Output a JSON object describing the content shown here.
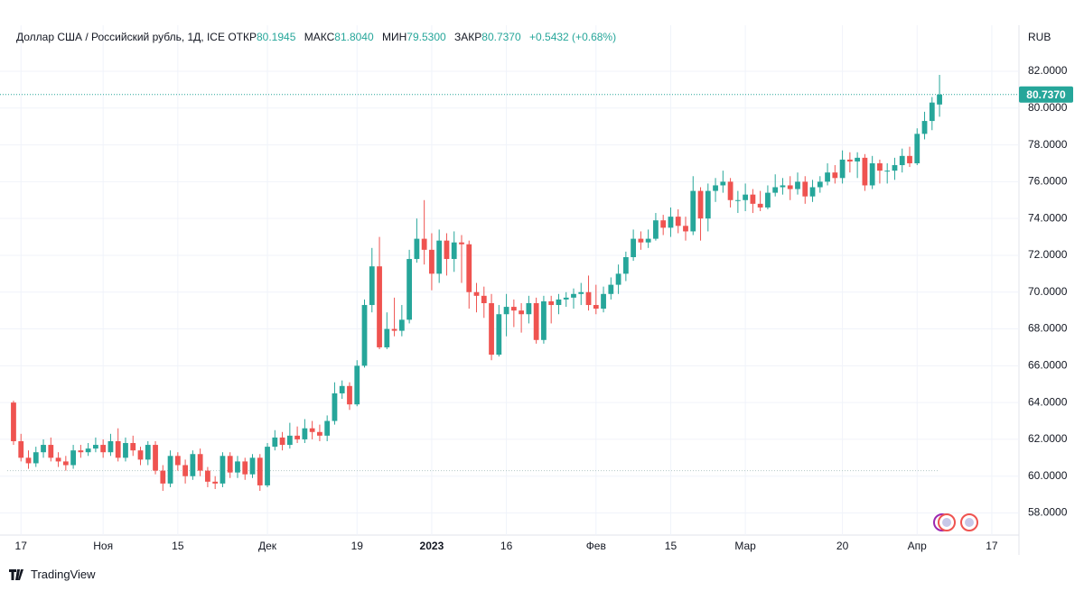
{
  "chart_data": {
    "type": "candlestick",
    "title": "Доллар США / Российский рубль, 1Д, ICE",
    "header": [
      {
        "label": "ОТКР",
        "value": "80.1945"
      },
      {
        "label": "МАКС",
        "value": "81.8040"
      },
      {
        "label": "МИН",
        "value": "79.5300"
      },
      {
        "label": "ЗАКР",
        "value": "80.7370"
      }
    ],
    "change": "+0.5432 (+0.68%)",
    "currency": "RUB",
    "up_color": "#26a69a",
    "down_color": "#ef5350",
    "grid": true,
    "open": [
      64.0,
      61.9,
      61.0,
      60.7,
      61.3,
      61.7,
      61.0,
      60.8,
      60.6,
      61.4,
      61.3,
      61.5,
      61.7,
      61.3,
      61.9,
      61.0,
      61.8,
      61.4,
      60.9,
      61.7,
      60.3,
      59.6,
      61.1,
      60.6,
      60.0,
      61.2,
      60.3,
      59.7,
      59.6,
      61.1,
      60.2,
      60.8,
      60.1,
      61.0,
      59.5,
      61.6,
      62.1,
      61.7,
      62.2,
      62.0,
      62.6,
      62.4,
      62.2,
      63.0,
      64.5,
      64.9,
      63.9,
      66.0,
      69.3,
      71.4,
      67.0,
      68.0,
      67.9,
      68.5,
      71.8,
      72.9,
      72.3,
      71.0,
      72.8,
      71.8,
      72.7,
      72.6,
      70.0,
      69.8,
      69.4,
      66.6,
      68.8,
      69.2,
      69.0,
      68.8,
      69.4,
      67.4,
      69.5,
      69.3,
      69.6,
      69.7,
      69.9,
      70.0,
      69.3,
      69.1,
      69.9,
      70.4,
      71.0,
      71.9,
      72.9,
      72.7,
      72.9,
      73.9,
      73.5,
      74.1,
      73.6,
      73.3,
      75.5,
      74.0,
      75.5,
      75.8,
      76.0,
      75.0,
      75.0,
      75.3,
      74.8,
      74.6,
      75.4,
      75.7,
      75.8,
      75.6,
      76.0,
      75.2,
      75.7,
      76.0,
      76.5,
      76.2,
      77.2,
      77.1,
      77.3,
      75.8,
      77.0,
      76.6,
      76.6,
      76.9,
      77.4,
      77.0,
      78.6,
      79.3,
      80.1945
    ],
    "high": [
      64.1,
      62.3,
      61.4,
      61.6,
      62.0,
      62.1,
      61.3,
      61.1,
      61.7,
      61.7,
      61.8,
      62.1,
      62.0,
      62.3,
      62.6,
      62.1,
      62.2,
      61.6,
      61.9,
      61.9,
      60.6,
      61.4,
      61.3,
      60.9,
      61.4,
      61.5,
      60.5,
      60.0,
      61.3,
      61.3,
      61.1,
      61.0,
      61.2,
      61.2,
      61.8,
      62.5,
      62.4,
      62.9,
      62.7,
      63.1,
      63.0,
      62.8,
      63.3,
      65.1,
      65.2,
      65.1,
      66.3,
      69.6,
      72.4,
      73.0,
      68.9,
      69.7,
      69.3,
      72.3,
      74.0,
      75.0,
      73.2,
      73.4,
      73.2,
      73.3,
      73.1,
      72.8,
      70.5,
      70.3,
      69.9,
      69.3,
      69.9,
      69.6,
      69.4,
      69.8,
      69.7,
      69.8,
      69.8,
      69.9,
      70.0,
      70.2,
      70.5,
      70.9,
      70.4,
      70.3,
      70.8,
      71.5,
      72.2,
      73.4,
      73.3,
      73.4,
      74.3,
      74.2,
      74.6,
      74.5,
      74.1,
      76.3,
      75.7,
      75.9,
      76.2,
      76.6,
      76.2,
      75.5,
      75.9,
      75.6,
      75.5,
      75.8,
      76.4,
      76.2,
      76.3,
      76.5,
      76.3,
      76.1,
      76.3,
      77.0,
      76.9,
      77.7,
      77.6,
      77.6,
      77.5,
      77.4,
      77.2,
      77.0,
      77.3,
      77.8,
      77.9,
      78.9,
      79.8,
      80.6,
      81.804
    ],
    "low": [
      61.7,
      60.8,
      60.4,
      60.5,
      61.0,
      60.8,
      60.5,
      60.3,
      60.4,
      61.0,
      61.1,
      61.3,
      61.0,
      61.1,
      60.8,
      60.8,
      61.1,
      60.6,
      60.6,
      60.1,
      59.2,
      59.4,
      60.3,
      59.6,
      59.8,
      60.0,
      59.4,
      59.3,
      59.4,
      59.9,
      59.9,
      59.8,
      59.9,
      59.2,
      59.4,
      61.4,
      61.4,
      61.5,
      61.8,
      61.8,
      62.0,
      61.9,
      61.9,
      62.8,
      64.2,
      63.6,
      63.8,
      65.9,
      68.9,
      66.9,
      66.9,
      67.6,
      67.6,
      68.3,
      71.6,
      71.5,
      70.1,
      70.5,
      70.9,
      71.1,
      70.5,
      69.1,
      68.9,
      68.6,
      66.3,
      66.5,
      67.6,
      68.1,
      67.8,
      68.3,
      67.2,
      67.2,
      68.3,
      68.8,
      69.2,
      69.1,
      69.3,
      69.0,
      68.8,
      68.9,
      69.6,
      69.9,
      70.6,
      71.7,
      72.3,
      72.4,
      72.8,
      73.1,
      73.0,
      73.2,
      72.8,
      73.1,
      72.8,
      73.3,
      74.9,
      75.4,
      74.6,
      74.3,
      74.4,
      74.3,
      74.4,
      74.5,
      75.2,
      75.3,
      75.0,
      75.3,
      74.8,
      74.9,
      75.4,
      75.8,
      75.9,
      75.9,
      76.5,
      76.2,
      75.5,
      75.6,
      75.9,
      75.9,
      76.1,
      76.5,
      76.8,
      76.9,
      78.3,
      78.8,
      79.53
    ],
    "close": [
      61.9,
      61.0,
      60.7,
      61.3,
      61.7,
      61.0,
      60.8,
      60.6,
      61.4,
      61.3,
      61.5,
      61.7,
      61.3,
      61.9,
      61.0,
      61.8,
      61.4,
      60.9,
      61.7,
      60.3,
      59.6,
      61.1,
      60.6,
      60.0,
      61.2,
      60.3,
      59.7,
      59.6,
      61.1,
      60.2,
      60.8,
      60.1,
      61.0,
      59.5,
      61.6,
      62.1,
      61.7,
      62.2,
      62.0,
      62.6,
      62.4,
      62.2,
      63.0,
      64.5,
      64.9,
      63.9,
      66.0,
      69.3,
      71.4,
      67.0,
      68.0,
      67.9,
      68.5,
      71.8,
      72.9,
      72.3,
      71.0,
      72.8,
      71.8,
      72.7,
      72.6,
      70.0,
      69.8,
      69.4,
      66.6,
      68.8,
      69.2,
      69.0,
      68.8,
      69.4,
      67.4,
      69.5,
      69.3,
      69.6,
      69.7,
      69.9,
      70.0,
      69.3,
      69.1,
      69.9,
      70.4,
      71.0,
      71.9,
      72.9,
      72.7,
      72.9,
      73.9,
      73.5,
      74.1,
      73.6,
      73.3,
      75.5,
      74.0,
      75.5,
      75.8,
      76.0,
      75.0,
      75.0,
      75.3,
      74.8,
      74.6,
      75.4,
      75.7,
      75.8,
      75.6,
      76.0,
      75.2,
      75.7,
      76.0,
      76.5,
      76.2,
      77.2,
      77.1,
      77.3,
      75.8,
      77.0,
      76.6,
      76.6,
      76.9,
      77.4,
      77.0,
      78.6,
      79.3,
      80.3,
      80.737
    ],
    "last_price": {
      "value": 80.737,
      "label": "80.7370"
    },
    "baseline": 60.3,
    "xlim": [
      -1,
      135
    ],
    "xticks": [
      {
        "value": 1,
        "label": "17"
      },
      {
        "value": 12,
        "label": "Ноя"
      },
      {
        "value": 22,
        "label": "15"
      },
      {
        "value": 34,
        "label": "Дек"
      },
      {
        "value": 46,
        "label": "19"
      },
      {
        "value": 56,
        "label": "2023"
      },
      {
        "value": 66,
        "label": "16"
      },
      {
        "value": 78,
        "label": "Фев"
      },
      {
        "value": 88,
        "label": "15"
      },
      {
        "value": 98,
        "label": "Мар"
      },
      {
        "value": 111,
        "label": "20"
      },
      {
        "value": 121,
        "label": "Апр"
      },
      {
        "value": 131,
        "label": "17"
      }
    ],
    "ylim": [
      56.8,
      84.5
    ],
    "yticks": [
      {
        "value": 58,
        "label": "58.0000"
      },
      {
        "value": 60,
        "label": "60.0000"
      },
      {
        "value": 62,
        "label": "62.0000"
      },
      {
        "value": 64,
        "label": "64.0000"
      },
      {
        "value": 66,
        "label": "66.0000"
      },
      {
        "value": 68,
        "label": "68.0000"
      },
      {
        "value": 70,
        "label": "70.0000"
      },
      {
        "value": 72,
        "label": "72.0000"
      },
      {
        "value": 74,
        "label": "74.0000"
      },
      {
        "value": 76,
        "label": "76.0000"
      },
      {
        "value": 78,
        "label": "78.0000"
      },
      {
        "value": 80,
        "label": "80.0000"
      },
      {
        "value": 82,
        "label": "82.0000"
      }
    ]
  },
  "footer": {
    "brand": "TradingView"
  }
}
